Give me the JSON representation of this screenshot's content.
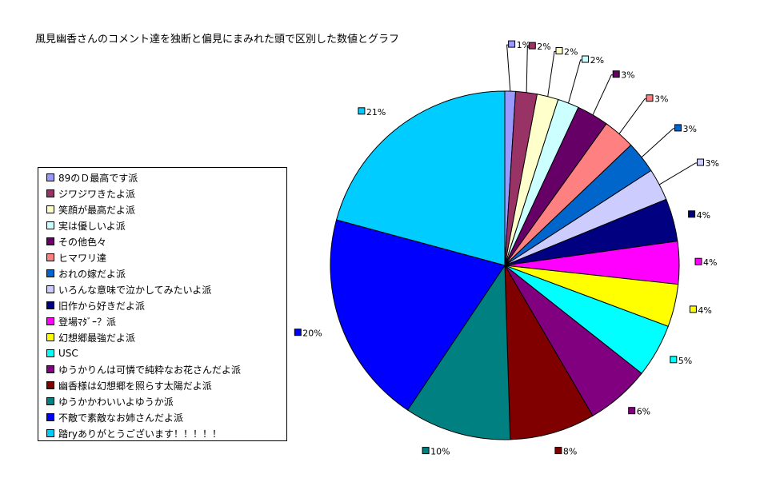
{
  "chart_data": {
    "type": "pie",
    "title": "風見幽香さんのコメント達を独断と偏見にまみれた頭で区別した数値とグラフ",
    "legend_position": "left",
    "slices": [
      {
        "label": "89のＤ最高です派",
        "value": 1,
        "value_label": "1%",
        "color": "#9999ff"
      },
      {
        "label": "ジワジワきたよ派",
        "value": 2,
        "value_label": "2%",
        "color": "#993366"
      },
      {
        "label": "笑顔が最高だよ派",
        "value": 2,
        "value_label": "2%",
        "color": "#ffffcc"
      },
      {
        "label": "実は優しいよ派",
        "value": 2,
        "value_label": "2%",
        "color": "#ccffff"
      },
      {
        "label": "その他色々",
        "value": 3,
        "value_label": "3%",
        "color": "#660066"
      },
      {
        "label": "ヒマワリ達",
        "value": 3,
        "value_label": "3%",
        "color": "#ff8080"
      },
      {
        "label": "おれの嫁だよ派",
        "value": 3,
        "value_label": "3%",
        "color": "#0066cc"
      },
      {
        "label": "いろんな意味で泣かしてみたいよ派",
        "value": 3,
        "value_label": "3%",
        "color": "#ccccff"
      },
      {
        "label": "旧作から好きだよ派",
        "value": 4,
        "value_label": "4%",
        "color": "#000080"
      },
      {
        "label": "登場ﾏﾀﾞｰ？派",
        "value": 4,
        "value_label": "4%",
        "color": "#ff00ff"
      },
      {
        "label": "幻想郷最強だよ派",
        "value": 4,
        "value_label": "4%",
        "color": "#ffff00"
      },
      {
        "label": "USC",
        "value": 5,
        "value_label": "5%",
        "color": "#00ffff"
      },
      {
        "label": "ゆうかりんは可憐で純粋なお花さんだよ派",
        "value": 6,
        "value_label": "6%",
        "color": "#800080"
      },
      {
        "label": "幽香様は幻想郷を照らす太陽だよ派",
        "value": 8,
        "value_label": "8%",
        "color": "#800000"
      },
      {
        "label": "ゆうかかわいいよゆうか派",
        "value": 10,
        "value_label": "10%",
        "color": "#008080"
      },
      {
        "label": "不敵で素敵なお姉さんだよ派",
        "value": 20,
        "value_label": "20%",
        "color": "#0000ff"
      },
      {
        "label": "踏ryありがとうございます！！！！！",
        "value": 21,
        "value_label": "21%",
        "color": "#00ccff"
      }
    ]
  }
}
